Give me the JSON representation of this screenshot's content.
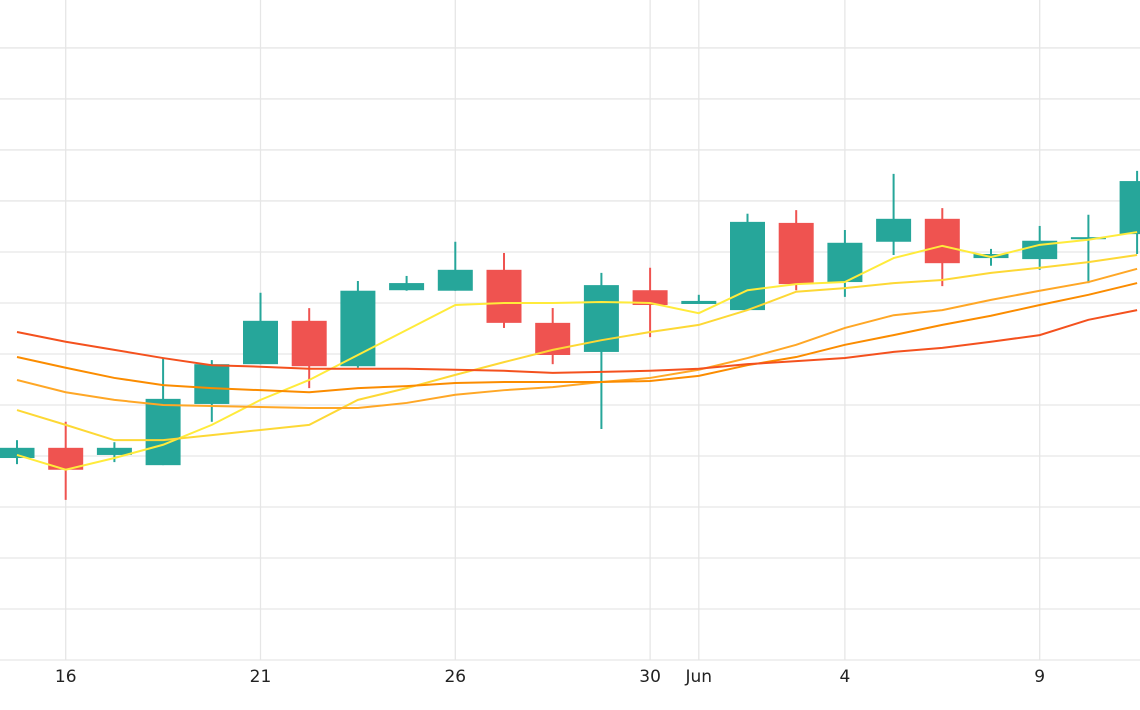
{
  "chart_data": {
    "type": "candlestick",
    "categories": [
      null,
      "16",
      null,
      null,
      null,
      "21",
      null,
      null,
      null,
      "26",
      null,
      null,
      null,
      "30",
      "Jun",
      null,
      null,
      "4",
      null,
      null,
      null,
      "9",
      null,
      null
    ],
    "open": [
      3.96,
      4.16,
      4.02,
      3.82,
      5.02,
      5.8,
      6.65,
      5.76,
      7.25,
      7.24,
      7.65,
      6.61,
      6.04,
      7.25,
      6.98,
      6.86,
      8.57,
      7.41,
      8.2,
      8.65,
      7.88,
      7.86,
      8.25,
      8.35
    ],
    "high": [
      4.31,
      4.67,
      4.27,
      5.92,
      5.88,
      7.2,
      6.9,
      7.43,
      7.53,
      8.2,
      7.98,
      6.9,
      7.59,
      7.69,
      7.16,
      8.75,
      8.82,
      8.43,
      9.53,
      8.86,
      8.06,
      8.51,
      8.73,
      9.59
    ],
    "low": [
      3.84,
      3.14,
      3.88,
      3.82,
      4.67,
      5.8,
      5.33,
      5.73,
      7.24,
      7.24,
      6.51,
      5.8,
      4.53,
      6.33,
      6.98,
      6.86,
      7.25,
      7.12,
      7.94,
      7.33,
      7.73,
      7.65,
      7.39,
      7.96
    ],
    "close": [
      4.16,
      3.73,
      4.16,
      5.12,
      5.8,
      6.65,
      5.76,
      7.24,
      7.39,
      7.65,
      6.61,
      5.98,
      7.35,
      6.96,
      7.04,
      8.59,
      7.37,
      8.18,
      8.65,
      7.78,
      7.96,
      8.22,
      8.29,
      9.39
    ],
    "up_color": "#26a69a",
    "down_color": "#ef5350",
    "lines": [
      {
        "color": "#ffeb3b",
        "values": [
          4.02,
          3.73,
          3.96,
          4.22,
          4.61,
          5.1,
          5.49,
          5.98,
          6.47,
          6.96,
          7.0,
          7.0,
          7.02,
          7.0,
          6.8,
          7.25,
          7.37,
          7.41,
          7.88,
          8.12,
          7.9,
          8.14,
          8.24,
          8.39
        ]
      },
      {
        "color": "#fdd835",
        "values": [
          4.9,
          4.61,
          4.31,
          4.31,
          4.41,
          4.51,
          4.61,
          5.1,
          5.33,
          5.59,
          5.84,
          6.08,
          6.27,
          6.43,
          6.57,
          6.86,
          7.22,
          7.29,
          7.39,
          7.45,
          7.59,
          7.69,
          7.8,
          7.94
        ]
      },
      {
        "color": "#ffa726",
        "values": [
          5.49,
          5.25,
          5.1,
          5.0,
          4.98,
          4.96,
          4.94,
          4.94,
          5.04,
          5.2,
          5.29,
          5.35,
          5.45,
          5.53,
          5.69,
          5.92,
          6.18,
          6.51,
          6.76,
          6.86,
          7.06,
          7.24,
          7.41,
          7.67
        ]
      },
      {
        "color": "#fb8c00",
        "values": [
          5.94,
          5.73,
          5.53,
          5.39,
          5.33,
          5.29,
          5.25,
          5.33,
          5.37,
          5.43,
          5.45,
          5.45,
          5.45,
          5.47,
          5.57,
          5.78,
          5.94,
          6.18,
          6.37,
          6.57,
          6.75,
          6.96,
          7.16,
          7.39
        ]
      },
      {
        "color": "#f4511e",
        "values": [
          6.43,
          6.24,
          6.08,
          5.92,
          5.78,
          5.75,
          5.71,
          5.71,
          5.71,
          5.69,
          5.67,
          5.63,
          5.65,
          5.67,
          5.71,
          5.8,
          5.86,
          5.92,
          6.04,
          6.12,
          6.24,
          6.37,
          6.67,
          6.86
        ]
      }
    ],
    "ylim": [
      0,
      12.94
    ],
    "yticks": [
      0,
      1,
      2,
      3,
      4,
      5,
      6,
      7,
      8,
      9,
      10,
      11,
      12
    ],
    "grid": true
  }
}
